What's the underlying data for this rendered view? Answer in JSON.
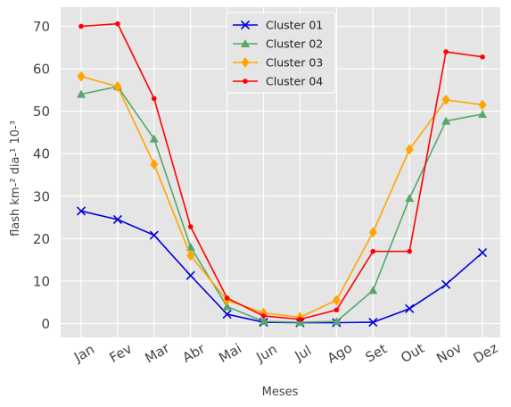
{
  "chart_data": {
    "type": "line",
    "title": "",
    "xlabel": "Meses",
    "ylabel": "flash km-² dia-¹ 10-³",
    "categories": [
      "Jan",
      "Fev",
      "Mar",
      "Abr",
      "Mai",
      "Jun",
      "Jul",
      "Ago",
      "Set",
      "Out",
      "Nov",
      "Dez"
    ],
    "ylim": [
      -3,
      74
    ],
    "yticks": [
      0,
      10,
      20,
      30,
      40,
      50,
      60,
      70
    ],
    "grid": true,
    "legend_position": "top-center",
    "series": [
      {
        "name": "Cluster 01",
        "color": "#0000dd",
        "marker": "x",
        "values": [
          26.5,
          24.5,
          20.8,
          11.3,
          2.2,
          0.3,
          0.2,
          0.2,
          0.3,
          3.5,
          9.2,
          16.7
        ]
      },
      {
        "name": "Cluster 02",
        "color": "#55a868",
        "marker": "triangle",
        "values": [
          54.0,
          55.8,
          43.5,
          18.0,
          4.0,
          0.5,
          0.3,
          0.5,
          7.8,
          29.5,
          47.7,
          49.3
        ]
      },
      {
        "name": "Cluster 03",
        "color": "#ffa500",
        "marker": "diamond",
        "values": [
          58.2,
          55.8,
          37.5,
          16.0,
          5.5,
          2.5,
          1.5,
          5.5,
          21.5,
          41.0,
          52.7,
          51.5
        ]
      },
      {
        "name": "Cluster 04",
        "color": "#ff0000",
        "marker": "dot",
        "values": [
          70.0,
          70.6,
          53.0,
          22.8,
          6.0,
          1.8,
          1.0,
          3.2,
          17.0,
          17.0,
          64.0,
          62.8
        ]
      }
    ]
  }
}
